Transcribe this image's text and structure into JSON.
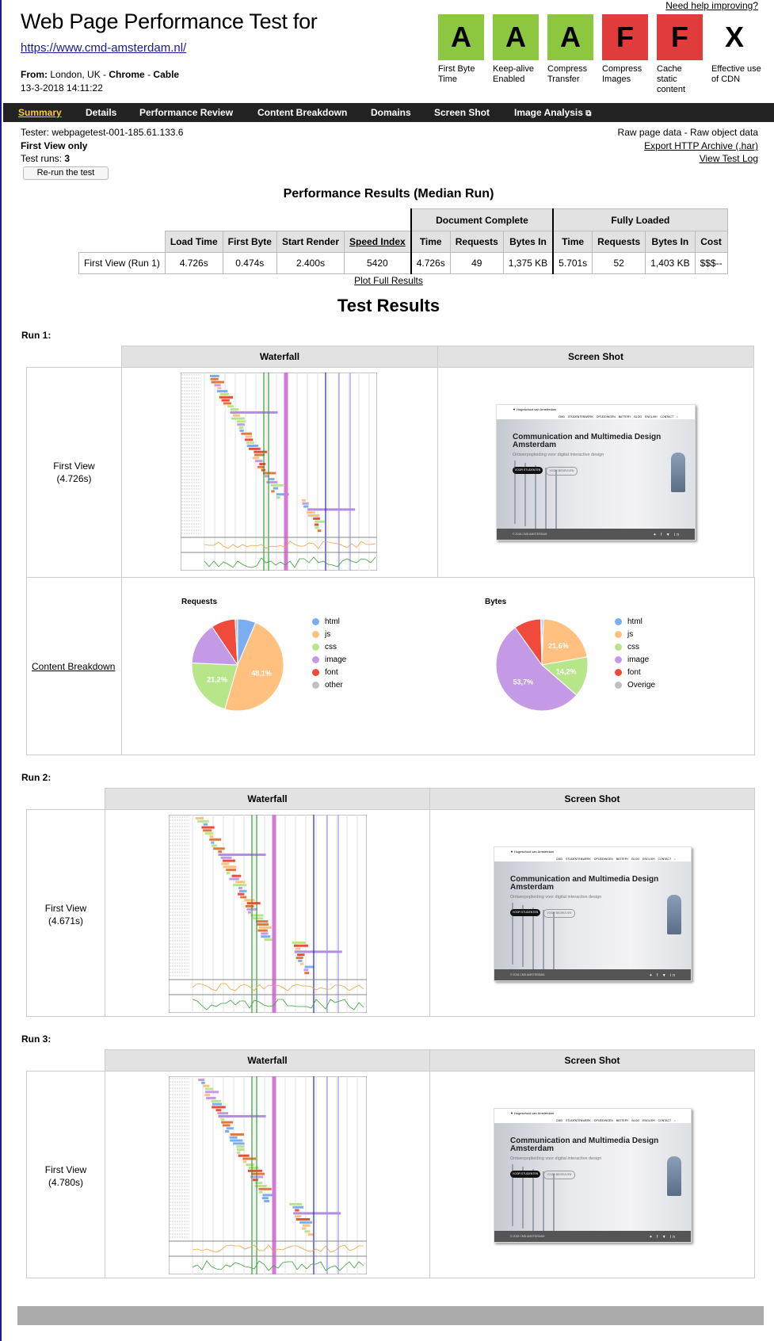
{
  "header": {
    "title": "Web Page Performance Test for",
    "url": "https://www.cmd-amsterdam.nl/",
    "from_label": "From:",
    "from_location": "London, UK - ",
    "browser": "Chrome",
    "sep": " - ",
    "connection": "Cable",
    "date": "13-3-2018 14:11:22",
    "help_link": "Need help improving?"
  },
  "grades": [
    {
      "letter": "A",
      "label": "First Byte Time",
      "color": "#8dc63f"
    },
    {
      "letter": "A",
      "label": "Keep-alive Enabled",
      "color": "#8dc63f"
    },
    {
      "letter": "A",
      "label": "Compress Transfer",
      "color": "#8dc63f"
    },
    {
      "letter": "F",
      "label": "Compress Images",
      "color": "#e03c3c"
    },
    {
      "letter": "F",
      "label": "Cache static content",
      "color": "#e03c3c"
    },
    {
      "letter": "X",
      "label": "Effective use of CDN",
      "color": "#ffffff"
    }
  ],
  "nav": [
    "Summary",
    "Details",
    "Performance Review",
    "Content Breakdown",
    "Domains",
    "Screen Shot",
    "Image Analysis"
  ],
  "info": {
    "tester": "Tester: webpagetest-001-185.61.133.6",
    "first_view_only": "First View only",
    "test_runs_label": "Test runs:",
    "test_runs": "3",
    "rerun": "Re-run the test",
    "raw_page": "Raw page data",
    "dash": " - ",
    "raw_object": "Raw object data",
    "export_har": "Export HTTP Archive (.har)",
    "view_log": "View Test Log"
  },
  "performance": {
    "heading": "Performance Results (Median Run)",
    "group_doc": "Document Complete",
    "group_full": "Fully Loaded",
    "columns": [
      "Load Time",
      "First Byte",
      "Start Render",
      "Speed Index",
      "Time",
      "Requests",
      "Bytes In",
      "Time",
      "Requests",
      "Bytes In",
      "Cost"
    ],
    "row_label": "First View (",
    "row_link": "Run 1",
    "row_close": ")",
    "values": [
      "4.726s",
      "0.474s",
      "2.400s",
      "5420",
      "4.726s",
      "49",
      "1,375 KB",
      "5.701s",
      "52",
      "1,403 KB",
      "$$$--"
    ],
    "plot_link": "Plot Full Results"
  },
  "test_results_heading": "Test Results",
  "runs": [
    {
      "label": "Run 1:",
      "first_view": "First View",
      "time": "(4.726s)"
    },
    {
      "label": "Run 2:",
      "first_view": "First View",
      "time": "(4.671s)"
    },
    {
      "label": "Run 3:",
      "first_view": "First View",
      "time": "(4.780s)"
    }
  ],
  "col_headers": {
    "waterfall": "Waterfall",
    "screenshot": "Screen Shot"
  },
  "content_breakdown_link": "Content Breakdown",
  "screenshot_site": {
    "headline": "Communication and Multimedia Design Amsterdam",
    "sub": "Ontwerpopleiding voor digital interactive design",
    "logo": "Hogeschool van Amsterdam",
    "menu": [
      "CMD",
      "STUDENTENWERK",
      "OPLEIDINGEN",
      "BATTERY",
      "BLOG",
      "ENGLISH",
      "CONTACT"
    ],
    "btn1": "VOOR STUDENTEN",
    "btn2": "VOOR BEDRIJVEN",
    "copyright": "© 2018 CMD AMSTERDAM"
  },
  "pies": {
    "requests": {
      "title": "Requests",
      "legend": [
        "html",
        "js",
        "css",
        "image",
        "font",
        "other"
      ],
      "colors": [
        "#7aaef0",
        "#ffc080",
        "#b7e58a",
        "#c49ae6",
        "#f04a3c",
        "#c0c0c0"
      ],
      "values": [
        6.4,
        48.1,
        21.2,
        14.9,
        8.5,
        0.9
      ],
      "labels": [
        "",
        "48,1%",
        "21,2%",
        "",
        "",
        ""
      ]
    },
    "bytes": {
      "title": "Bytes",
      "legend": [
        "html",
        "js",
        "css",
        "image",
        "font",
        "Overige"
      ],
      "colors": [
        "#7aaef0",
        "#ffc080",
        "#b7e58a",
        "#c49ae6",
        "#f04a3c",
        "#c0c0c0"
      ],
      "values": [
        0.6,
        21.6,
        14.2,
        53.7,
        9.5,
        0.4
      ],
      "labels": [
        "",
        "21,6%",
        "14,2%",
        "53,7%",
        "",
        ""
      ]
    }
  }
}
